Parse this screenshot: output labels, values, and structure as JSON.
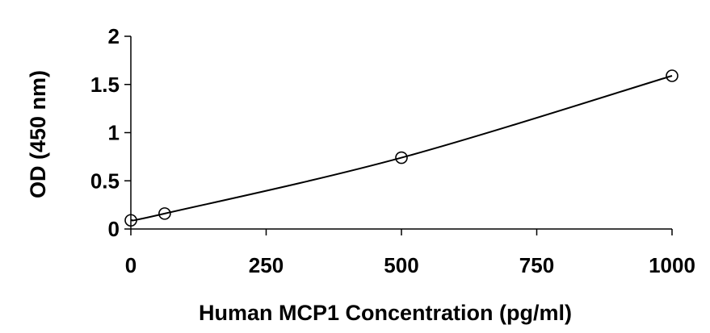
{
  "chart_data": {
    "type": "scatter",
    "title": "",
    "xlabel": "Human MCP1 Concentration (pg/ml)",
    "ylabel": "OD (450 nm)",
    "xlim": [
      0,
      1000
    ],
    "ylim": [
      0,
      2
    ],
    "x_ticks": [
      0,
      250,
      500,
      750,
      1000
    ],
    "y_ticks": [
      0,
      0.5,
      1,
      1.5,
      2
    ],
    "x_tick_labels": [
      "0",
      "250",
      "500",
      "750",
      "1000"
    ],
    "y_tick_labels": [
      "0",
      "0.5",
      "1",
      "1.5",
      "2"
    ],
    "grid": false,
    "legend": "none",
    "trendline": "smooth curve through points",
    "series": [
      {
        "x": [
          0,
          62.5,
          500,
          1000
        ],
        "y": [
          0.09,
          0.16,
          0.74,
          1.59
        ],
        "marker": "open-circle",
        "color": "#000000"
      }
    ]
  }
}
